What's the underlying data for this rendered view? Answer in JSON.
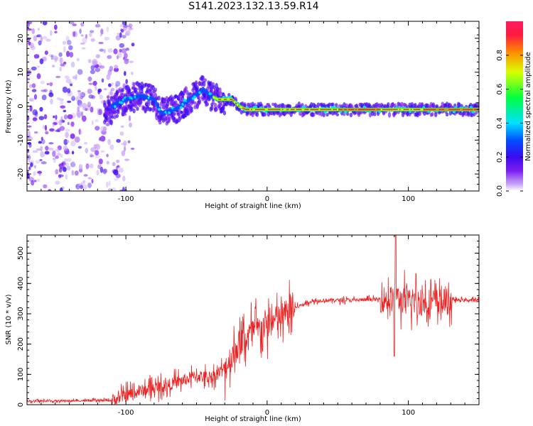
{
  "title": "S141.2023.132.13.59.R14",
  "chart_data": [
    {
      "type": "heatmap",
      "xlabel": "Height of straight line (km)",
      "ylabel": "Frequency (Hz)",
      "xlim": [
        -170,
        150
      ],
      "ylim": [
        -25,
        25
      ],
      "xticks": [
        -100,
        0,
        100
      ],
      "yticks": [
        -20,
        -10,
        0,
        10,
        20
      ],
      "colorbar": {
        "label": "Normalized spectral amplitude",
        "range": [
          0,
          1
        ],
        "ticks": [
          "0.0",
          "0.2",
          "0.4",
          "0.6",
          "0.8"
        ],
        "colormap": [
          "#ffffff",
          "#c9a6f6",
          "#7a1ff0",
          "#3c0af0",
          "#0050ff",
          "#00e0ff",
          "#00ff40",
          "#d8ff00",
          "#ff8a00",
          "#ff1a40"
        ]
      },
      "ridge": {
        "description_points": [
          [
            -110,
            0
          ],
          [
            -100,
            2
          ],
          [
            -90,
            3
          ],
          [
            -80,
            2
          ],
          [
            -75,
            -2
          ],
          [
            -65,
            -1
          ],
          [
            -55,
            2
          ],
          [
            -45,
            5
          ],
          [
            -40,
            3
          ],
          [
            -35,
            2
          ],
          [
            -25,
            2
          ],
          [
            -20,
            0
          ],
          [
            -15,
            -1
          ],
          [
            -10,
            -1
          ],
          [
            0,
            -1
          ],
          [
            50,
            -1
          ],
          [
            100,
            -1
          ],
          [
            150,
            -1
          ]
        ]
      }
    },
    {
      "type": "line",
      "xlabel": "Height of straight line (km)",
      "ylabel": "SNR (10 * v/v)",
      "xlim": [
        -170,
        150
      ],
      "ylim": [
        0,
        560
      ],
      "xticks": [
        -100,
        0,
        100
      ],
      "yticks": [
        0,
        100,
        200,
        300,
        400,
        500
      ],
      "color": "#ee2222",
      "envelope": [
        [
          -170,
          12
        ],
        [
          -110,
          14
        ],
        [
          -100,
          30
        ],
        [
          -90,
          45
        ],
        [
          -80,
          55
        ],
        [
          -70,
          65
        ],
        [
          -60,
          80
        ],
        [
          -50,
          95
        ],
        [
          -40,
          90
        ],
        [
          -30,
          120
        ],
        [
          -20,
          200
        ],
        [
          -10,
          240
        ],
        [
          0,
          260
        ],
        [
          10,
          290
        ],
        [
          20,
          320
        ],
        [
          30,
          340
        ],
        [
          40,
          345
        ],
        [
          60,
          345
        ],
        [
          80,
          348
        ],
        [
          90,
          350
        ],
        [
          100,
          340
        ],
        [
          130,
          340
        ],
        [
          131,
          345
        ],
        [
          150,
          345
        ]
      ]
    }
  ]
}
